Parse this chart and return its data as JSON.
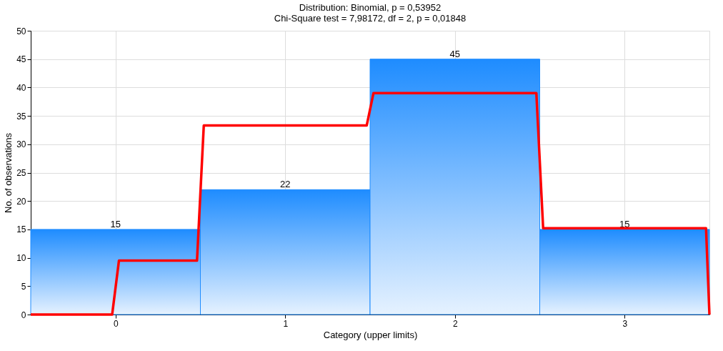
{
  "chart_data": {
    "type": "histogram",
    "title": "Distribution: Binomial, p = 0,53952",
    "subtitle": "Chi-Square test = 7,98172, df = 2, p = 0,01848",
    "xlabel": "Category (upper limits)",
    "ylabel": "No. of observations",
    "bins": [
      -0.5,
      0.5,
      1.5,
      2.5,
      3.5
    ],
    "values": [
      15,
      22,
      45,
      15
    ],
    "color": "#1e8cff",
    "value_labels": [
      "15",
      "22",
      "45",
      "15"
    ],
    "series": [
      {
        "type": "line",
        "color": "#ff0000",
        "x": [
          -0.5,
          -0.02,
          0.02,
          0.48,
          0.52,
          1.48,
          1.52,
          2.48,
          2.52,
          3.48,
          3.5
        ],
        "values": [
          0,
          0,
          9.5,
          9.5,
          33.3,
          33.3,
          39,
          39,
          15.2,
          15.2,
          0
        ]
      }
    ],
    "xlim": [
      -0.5,
      3.5
    ],
    "xticks": [
      0,
      1,
      2,
      3
    ],
    "ylim": [
      0,
      50
    ],
    "yticks": [
      0,
      5,
      10,
      15,
      20,
      25,
      30,
      35,
      40,
      45,
      50
    ],
    "grid": true
  }
}
